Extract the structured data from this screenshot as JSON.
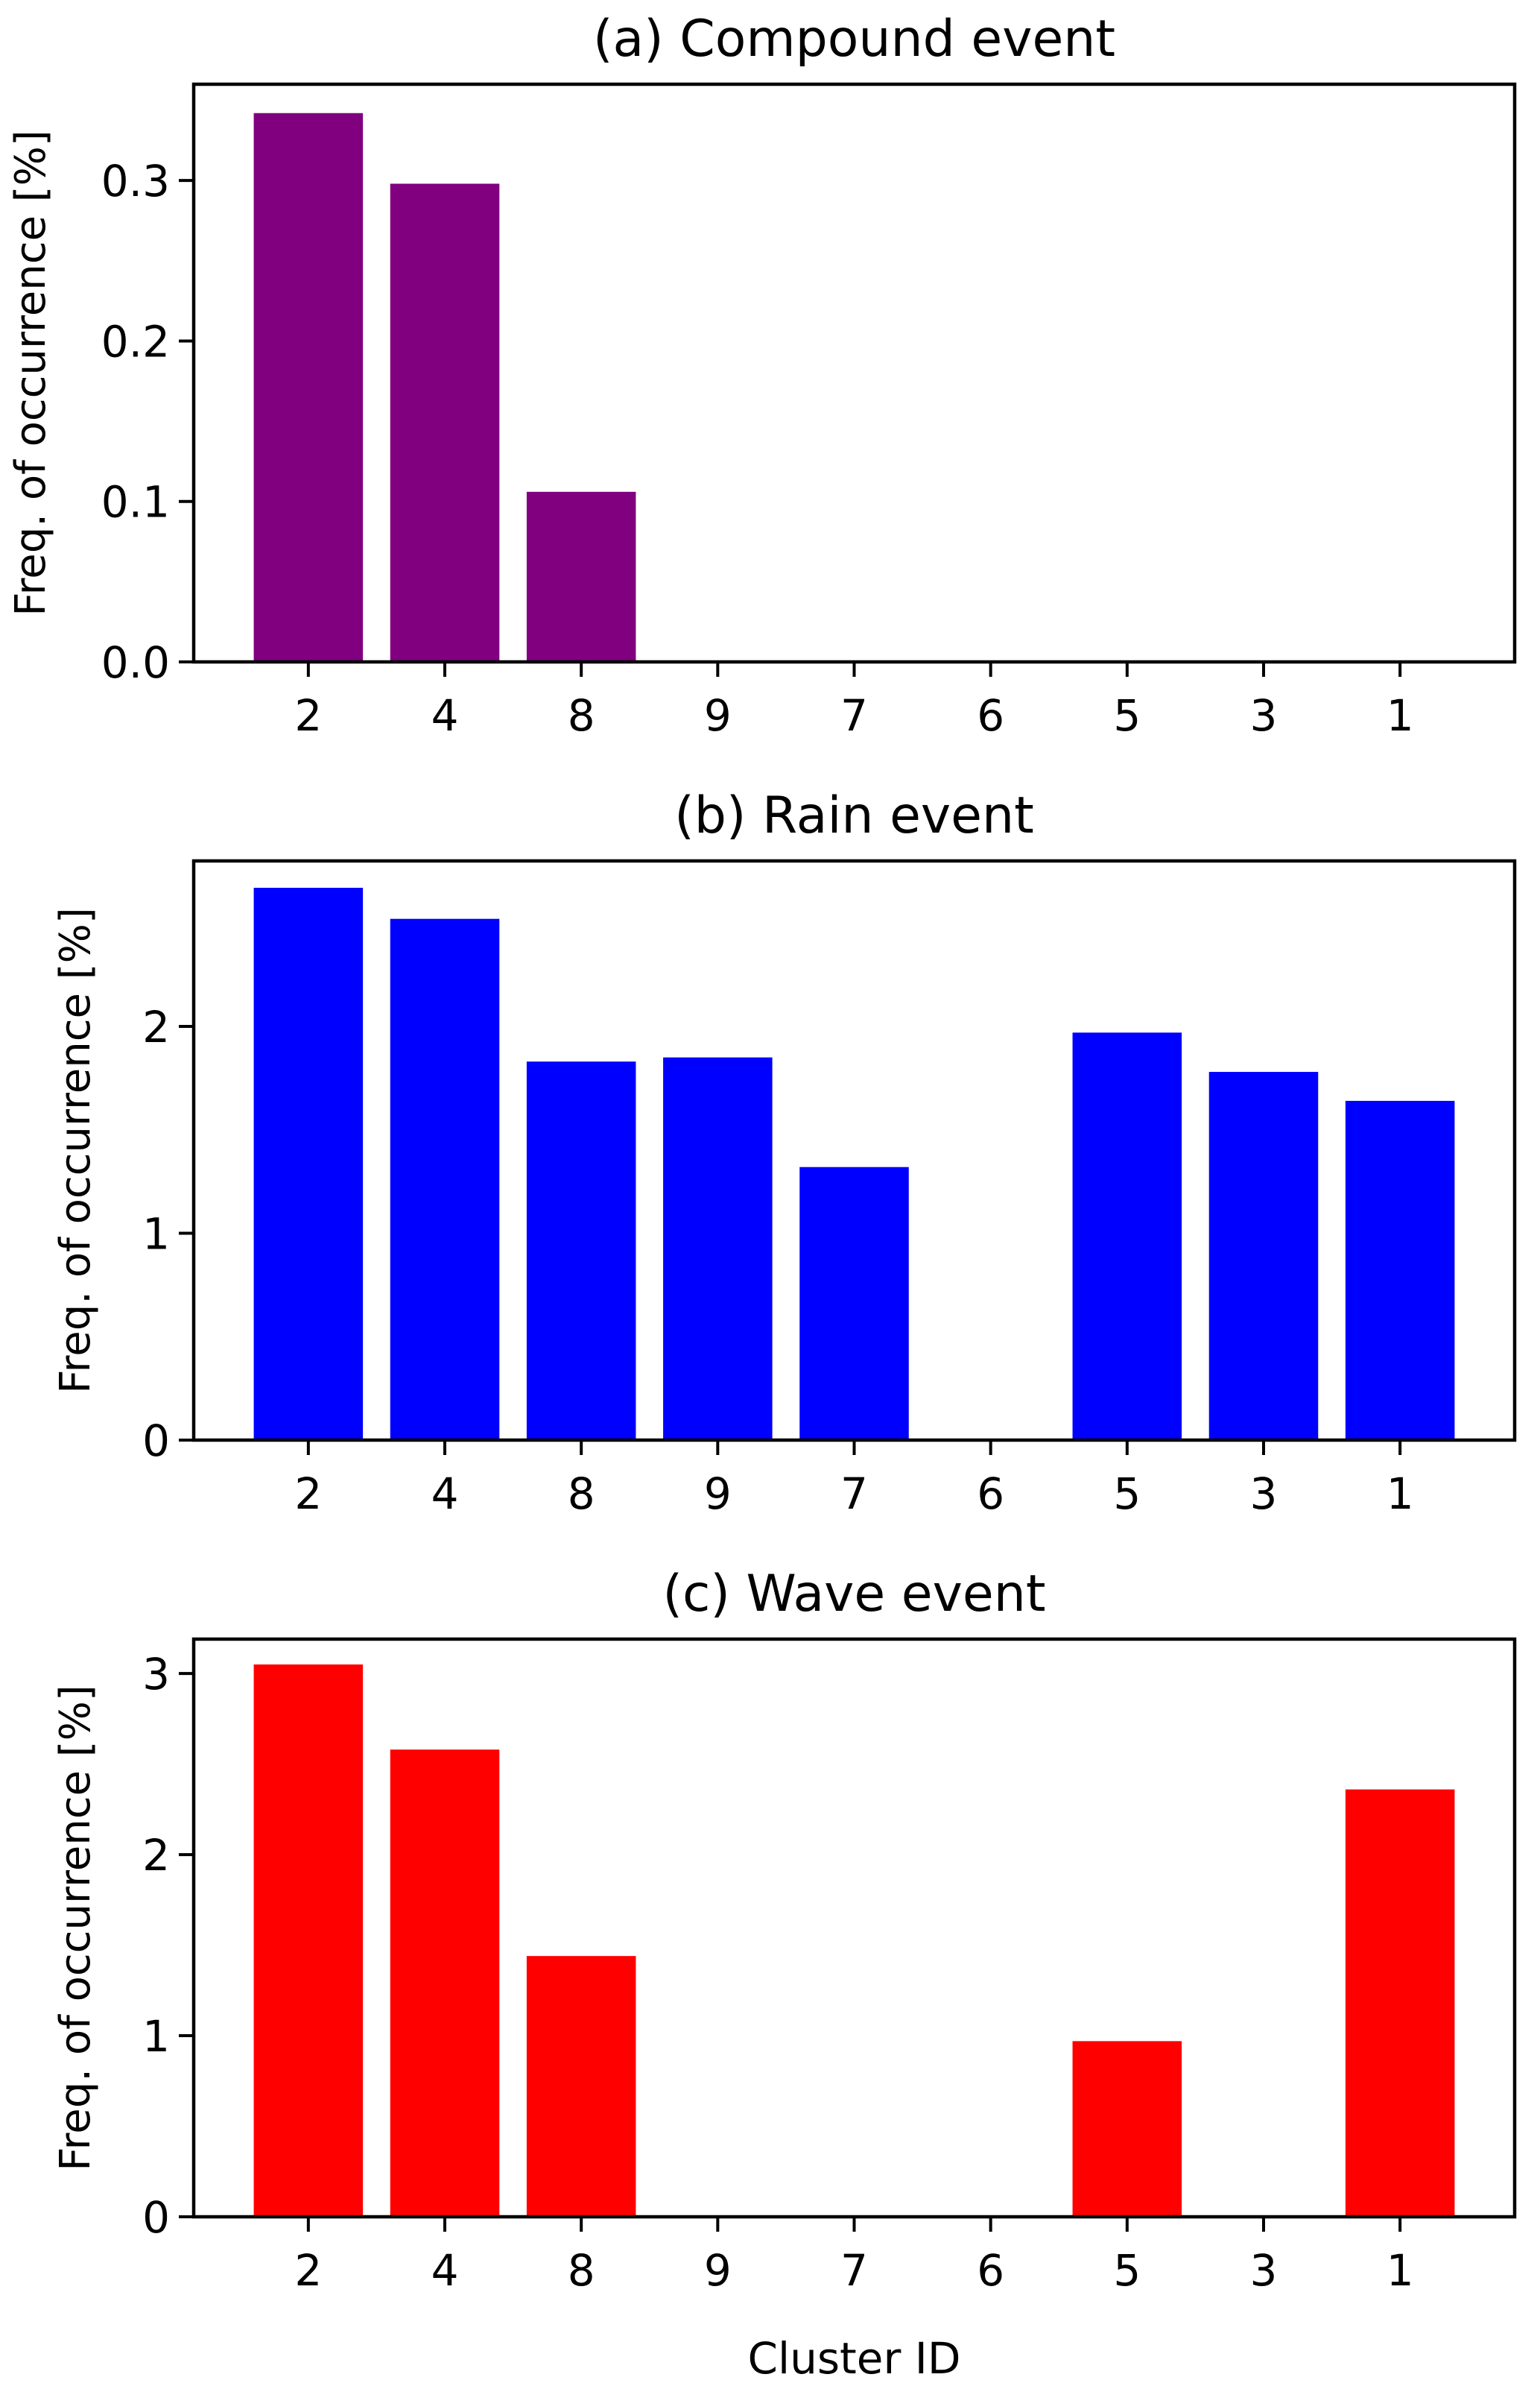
{
  "chart_data": [
    {
      "type": "bar",
      "title": "(a) Compound event",
      "xlabel": "",
      "ylabel": "Freq. of occurrence [%]",
      "categories": [
        "2",
        "4",
        "8",
        "9",
        "7",
        "6",
        "5",
        "3",
        "1"
      ],
      "values": [
        0.342,
        0.298,
        0.106,
        0,
        0,
        0,
        0,
        0,
        0
      ],
      "ylim": [
        0,
        0.36
      ],
      "yticks": [
        0.0,
        0.1,
        0.2,
        0.3
      ],
      "ytick_labels": [
        "0.0",
        "0.1",
        "0.2",
        "0.3"
      ],
      "color": "#800080",
      "grid": false
    },
    {
      "type": "bar",
      "title": "(b) Rain event",
      "xlabel": "",
      "ylabel": "Freq. of occurrence [%]",
      "categories": [
        "2",
        "4",
        "8",
        "9",
        "7",
        "6",
        "5",
        "3",
        "1"
      ],
      "values": [
        2.67,
        2.52,
        1.83,
        1.85,
        1.32,
        0,
        1.97,
        1.78,
        1.64
      ],
      "ylim": [
        0,
        2.8
      ],
      "yticks": [
        0,
        1,
        2
      ],
      "ytick_labels": [
        "0",
        "1",
        "2"
      ],
      "color": "#0000ff",
      "grid": false
    },
    {
      "type": "bar",
      "title": "(c) Wave event",
      "xlabel": "Cluster ID",
      "ylabel": "Freq. of occurrence [%]",
      "categories": [
        "2",
        "4",
        "8",
        "9",
        "7",
        "6",
        "5",
        "3",
        "1"
      ],
      "values": [
        3.05,
        2.58,
        1.44,
        0,
        0,
        0,
        0.97,
        0,
        2.36
      ],
      "ylim": [
        0,
        3.19
      ],
      "yticks": [
        0,
        1,
        2,
        3
      ],
      "ytick_labels": [
        "0",
        "1",
        "2",
        "3"
      ],
      "color": "#ff0000",
      "grid": false
    }
  ]
}
